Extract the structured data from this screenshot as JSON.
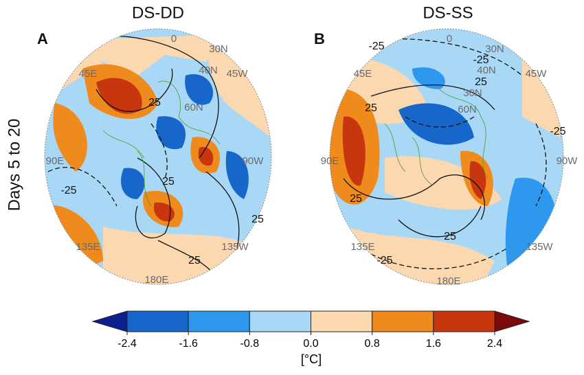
{
  "row_label": "Days 5 to 20",
  "panels": [
    {
      "title": "DS-DD",
      "label": "A",
      "map_labels": [
        "0",
        "30N",
        "45E",
        "45W",
        "40N",
        "60N",
        "90E",
        "90W",
        "135E",
        "135W",
        "180E"
      ],
      "contour_labels": [
        "-25",
        "25",
        "25",
        "25",
        "25"
      ]
    },
    {
      "title": "DS-SS",
      "label": "B",
      "map_labels": [
        "0",
        "30N",
        "45E",
        "45W",
        "40N",
        "30N",
        "60N",
        "90E",
        "90W",
        "135E",
        "135W",
        "180E"
      ],
      "contour_labels": [
        "-25",
        "-25",
        "25",
        "25",
        "-25",
        "25",
        "25",
        "-25"
      ]
    }
  ],
  "colorbar": {
    "ticks": [
      -2.4,
      -1.6,
      -0.8,
      {
        "value": 0,
        "label": "0.0"
      },
      0.8,
      1.6,
      2.4
    ],
    "colors": [
      "#0b1f8f",
      "#1766c9",
      "#2e98ef",
      "#a9d8f7",
      "#fbd8b0",
      "#ef8a1c",
      "#c8360f",
      "#7b0b0b"
    ],
    "label": "[°C]"
  }
}
